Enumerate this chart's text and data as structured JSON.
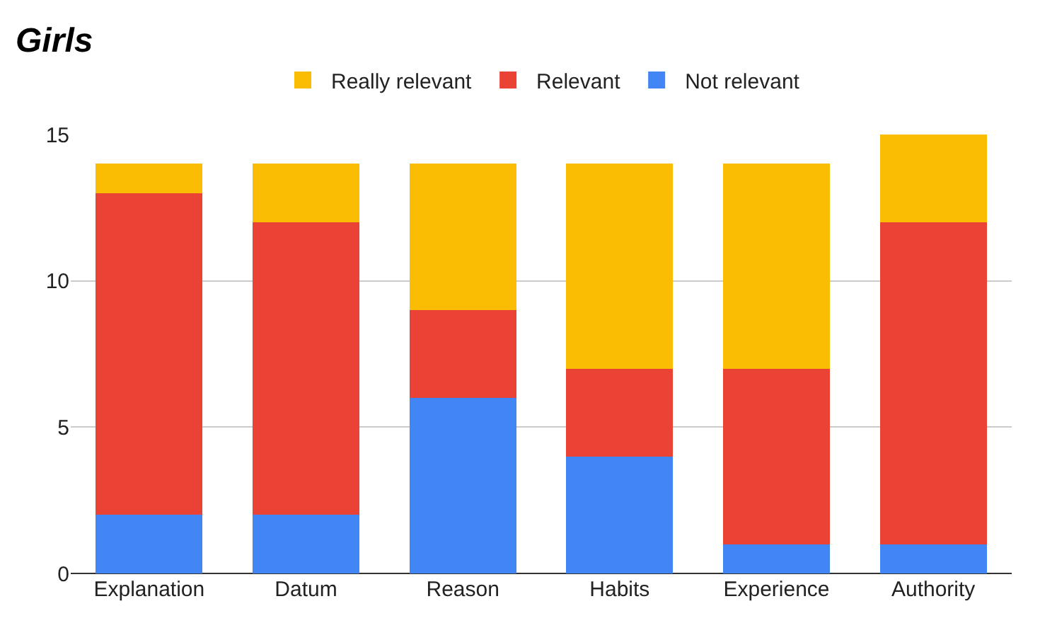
{
  "chart_data": {
    "type": "bar",
    "title": "Girls",
    "stacked": true,
    "categories": [
      "Explanation",
      "Datum",
      "Reason",
      "Habits",
      "Experience",
      "Authority"
    ],
    "series": [
      {
        "name": "Not relevant",
        "color": "#4285f4",
        "values": [
          2,
          2,
          6,
          4,
          1,
          1
        ]
      },
      {
        "name": "Relevant",
        "color": "#ea4335",
        "values": [
          11,
          10,
          3,
          3,
          6,
          11
        ]
      },
      {
        "name": "Really relevant",
        "color": "#fbbc04",
        "values": [
          1,
          2,
          5,
          7,
          7,
          3
        ]
      }
    ],
    "ylim": [
      0,
      15
    ],
    "yticks": [
      0,
      5,
      10,
      15
    ],
    "grid": "y",
    "legend": "top"
  }
}
